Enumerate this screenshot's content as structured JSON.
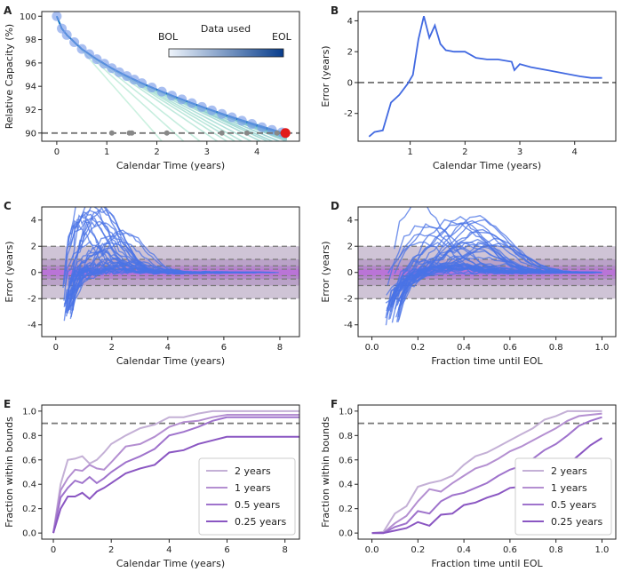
{
  "chart_data": [
    {
      "panel": "A",
      "type": "line",
      "xlabel": "Calendar Time (years)",
      "ylabel": "Relative Capacity (%)",
      "xlim": [
        -0.3,
        4.85
      ],
      "ylim": [
        89.3,
        100.4
      ],
      "xticks": [
        0,
        1,
        2,
        3,
        4
      ],
      "yticks": [
        90,
        92,
        94,
        96,
        98,
        100
      ],
      "colorbar": {
        "title": "Data used",
        "start": "BOL",
        "end": "EOL"
      },
      "threshold": 90,
      "eol_point": {
        "x": 4.57,
        "y": 90
      },
      "measured": {
        "x": [
          0,
          0.1,
          0.2,
          0.35,
          0.5,
          0.65,
          0.8,
          0.95,
          1.1,
          1.25,
          1.4,
          1.55,
          1.7,
          1.9,
          2.1,
          2.3,
          2.5,
          2.7,
          2.9,
          3.1,
          3.3,
          3.5,
          3.7,
          3.9,
          4.1,
          4.3,
          4.5
        ],
        "y": [
          100,
          98.95,
          98.4,
          97.78,
          97.2,
          96.75,
          96.32,
          95.93,
          95.55,
          95.2,
          94.88,
          94.57,
          94.27,
          93.9,
          93.55,
          93.21,
          92.88,
          92.56,
          92.24,
          91.94,
          91.64,
          91.35,
          91.06,
          90.78,
          90.5,
          90.27,
          90.06
        ]
      },
      "threshold_marks_x": [
        1.1,
        1.45,
        1.5,
        2.2,
        3.3,
        3.8,
        4.4
      ]
    },
    {
      "panel": "B",
      "type": "line",
      "xlabel": "Calendar Time (years)",
      "ylabel": "Error (years)",
      "xlim": [
        0.05,
        4.75
      ],
      "ylim": [
        -3.8,
        4.6
      ],
      "xticks": [
        1,
        2,
        3,
        4
      ],
      "yticks": [
        -2,
        0,
        2,
        4
      ],
      "reference_line": 0,
      "series": [
        {
          "name": "error",
          "x": [
            0.25,
            0.35,
            0.5,
            0.65,
            0.8,
            0.95,
            1.05,
            1.15,
            1.25,
            1.35,
            1.45,
            1.55,
            1.65,
            1.8,
            2.0,
            2.2,
            2.4,
            2.6,
            2.85,
            2.9,
            3.0,
            3.2,
            3.5,
            3.8,
            4.1,
            4.3,
            4.5
          ],
          "y": [
            -3.5,
            -3.2,
            -3.1,
            -1.3,
            -0.8,
            -0.1,
            0.5,
            2.8,
            4.3,
            2.9,
            3.7,
            2.5,
            2.1,
            2.0,
            2.0,
            1.6,
            1.5,
            1.5,
            1.35,
            0.8,
            1.2,
            1.0,
            0.8,
            0.6,
            0.4,
            0.3,
            0.3
          ]
        }
      ]
    },
    {
      "panel": "C",
      "type": "line",
      "xlabel": "Calendar Time (years)",
      "ylabel": "Error (years)",
      "xlim": [
        -0.5,
        8.7
      ],
      "ylim": [
        -4.9,
        5.0
      ],
      "xticks": [
        0,
        2,
        4,
        6,
        8
      ],
      "yticks": [
        -4,
        -2,
        0,
        2,
        4
      ],
      "bands": [
        2,
        1,
        0.5,
        0.25
      ],
      "series_count": 40
    },
    {
      "panel": "D",
      "type": "line",
      "xlabel": "Fraction time until EOL",
      "ylabel": "Error (years)",
      "xlim": [
        -0.06,
        1.06
      ],
      "ylim": [
        -4.9,
        5.0
      ],
      "xticks": [
        0.0,
        0.2,
        0.4,
        0.6,
        0.8,
        1.0
      ],
      "yticks": [
        -4,
        -2,
        0,
        2,
        4
      ],
      "bands": [
        2,
        1,
        0.5,
        0.25
      ],
      "series_count": 40
    },
    {
      "panel": "E",
      "type": "line",
      "xlabel": "Calendar Time (years)",
      "ylabel": "Fraction within bounds",
      "xlim": [
        -0.4,
        8.5
      ],
      "ylim": [
        -0.05,
        1.05
      ],
      "xticks": [
        0,
        2,
        4,
        6,
        8
      ],
      "yticks": [
        0.0,
        0.2,
        0.4,
        0.6,
        0.8,
        1.0
      ],
      "reference_line": 0.9,
      "legend_position": "lower-right",
      "series": [
        {
          "name": "2 years",
          "color": "#c4b0d6",
          "x": [
            0,
            0.25,
            0.5,
            0.75,
            1.0,
            1.25,
            1.5,
            1.75,
            2.0,
            2.5,
            3.0,
            3.5,
            4.0,
            4.5,
            5.0,
            5.5,
            6.0,
            6.5,
            7.0,
            8.5
          ],
          "y": [
            0,
            0.4,
            0.6,
            0.61,
            0.63,
            0.57,
            0.6,
            0.66,
            0.73,
            0.8,
            0.86,
            0.89,
            0.95,
            0.95,
            0.98,
            1.0,
            1.0,
            1.0,
            1.0,
            1.0
          ]
        },
        {
          "name": "1 years",
          "color": "#b48fd1",
          "x": [
            0,
            0.25,
            0.5,
            0.75,
            1.0,
            1.25,
            1.5,
            1.75,
            2.0,
            2.5,
            3.0,
            3.5,
            4.0,
            4.5,
            5.0,
            5.5,
            6.0,
            8.5
          ],
          "y": [
            0,
            0.35,
            0.45,
            0.52,
            0.51,
            0.56,
            0.53,
            0.52,
            0.58,
            0.71,
            0.73,
            0.79,
            0.87,
            0.91,
            0.92,
            0.95,
            0.97,
            0.97
          ]
        },
        {
          "name": "0.5 years",
          "color": "#9f73cc",
          "x": [
            0,
            0.25,
            0.5,
            0.75,
            1.0,
            1.25,
            1.5,
            1.75,
            2.0,
            2.5,
            3.0,
            3.5,
            4.0,
            4.5,
            5.0,
            5.5,
            6.0,
            8.5
          ],
          "y": [
            0,
            0.29,
            0.37,
            0.43,
            0.41,
            0.46,
            0.41,
            0.45,
            0.5,
            0.58,
            0.63,
            0.69,
            0.8,
            0.83,
            0.87,
            0.92,
            0.95,
            0.95
          ]
        },
        {
          "name": "0.25 years",
          "color": "#8a56c2",
          "x": [
            0,
            0.25,
            0.5,
            0.75,
            1.0,
            1.25,
            1.5,
            1.75,
            2.0,
            2.5,
            3.0,
            3.5,
            4.0,
            4.5,
            5.0,
            5.5,
            6.0,
            8.5
          ],
          "y": [
            0,
            0.2,
            0.3,
            0.3,
            0.33,
            0.28,
            0.34,
            0.37,
            0.41,
            0.49,
            0.53,
            0.56,
            0.66,
            0.68,
            0.73,
            0.76,
            0.79,
            0.79
          ]
        }
      ]
    },
    {
      "panel": "F",
      "type": "line",
      "xlabel": "Fraction time until EOL",
      "ylabel": "Fraction within bounds",
      "xlim": [
        -0.06,
        1.06
      ],
      "ylim": [
        -0.05,
        1.05
      ],
      "xticks": [
        0.0,
        0.2,
        0.4,
        0.6,
        0.8,
        1.0
      ],
      "yticks": [
        0.0,
        0.2,
        0.4,
        0.6,
        0.8,
        1.0
      ],
      "reference_line": 0.9,
      "legend_position": "lower-right",
      "series": [
        {
          "name": "2 years",
          "color": "#c4b0d6",
          "x": [
            0,
            0.05,
            0.1,
            0.15,
            0.2,
            0.25,
            0.3,
            0.35,
            0.4,
            0.45,
            0.5,
            0.55,
            0.6,
            0.65,
            0.7,
            0.75,
            0.8,
            0.85,
            0.9,
            1.0
          ],
          "y": [
            0,
            0.01,
            0.16,
            0.22,
            0.38,
            0.41,
            0.43,
            0.47,
            0.56,
            0.63,
            0.66,
            0.71,
            0.76,
            0.81,
            0.86,
            0.93,
            0.96,
            1.0,
            1.0,
            1.0
          ]
        },
        {
          "name": "1 years",
          "color": "#b48fd1",
          "x": [
            0,
            0.05,
            0.1,
            0.15,
            0.2,
            0.25,
            0.3,
            0.35,
            0.4,
            0.45,
            0.5,
            0.55,
            0.6,
            0.65,
            0.7,
            0.75,
            0.8,
            0.85,
            0.9,
            1.0
          ],
          "y": [
            0,
            0.0,
            0.08,
            0.14,
            0.26,
            0.36,
            0.34,
            0.41,
            0.47,
            0.53,
            0.56,
            0.61,
            0.67,
            0.71,
            0.76,
            0.81,
            0.86,
            0.92,
            0.96,
            0.98
          ]
        },
        {
          "name": "0.5 years",
          "color": "#9f73cc",
          "x": [
            0,
            0.05,
            0.1,
            0.15,
            0.2,
            0.25,
            0.3,
            0.35,
            0.4,
            0.45,
            0.5,
            0.55,
            0.6,
            0.65,
            0.7,
            0.75,
            0.8,
            0.85,
            0.9,
            0.95,
            1.0
          ],
          "y": [
            0,
            0.0,
            0.05,
            0.08,
            0.18,
            0.16,
            0.26,
            0.31,
            0.33,
            0.37,
            0.41,
            0.47,
            0.52,
            0.55,
            0.61,
            0.68,
            0.73,
            0.8,
            0.88,
            0.92,
            0.95
          ]
        },
        {
          "name": "0.25 years",
          "color": "#8a56c2",
          "x": [
            0,
            0.05,
            0.1,
            0.15,
            0.2,
            0.25,
            0.3,
            0.35,
            0.4,
            0.45,
            0.5,
            0.55,
            0.6,
            0.65,
            0.7,
            0.75,
            0.8,
            0.85,
            0.9,
            0.95,
            1.0
          ],
          "y": [
            0,
            0.0,
            0.02,
            0.04,
            0.09,
            0.06,
            0.15,
            0.16,
            0.23,
            0.25,
            0.29,
            0.32,
            0.37,
            0.38,
            0.44,
            0.47,
            0.53,
            0.56,
            0.64,
            0.72,
            0.78
          ]
        }
      ]
    }
  ]
}
